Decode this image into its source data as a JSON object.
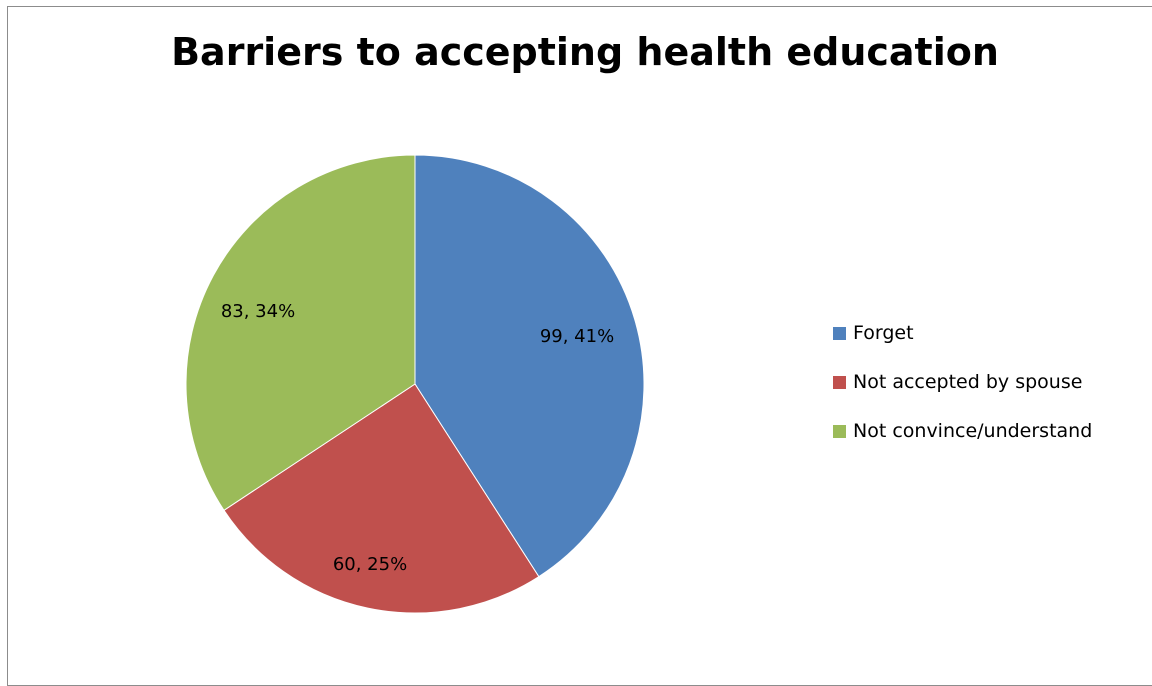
{
  "chart_data": {
    "type": "pie",
    "title": "Barriers to accepting health education",
    "categories": [
      "Forget",
      "Not accepted by spouse",
      "Not convince/understand"
    ],
    "values": [
      99,
      60,
      83
    ],
    "percentages": [
      41,
      25,
      34
    ],
    "data_labels": [
      "99, 41%",
      "60, 25%",
      "83, 34%"
    ],
    "colors": [
      "#4f81bd",
      "#c0504d",
      "#9bbb59"
    ],
    "legend_position": "right"
  }
}
